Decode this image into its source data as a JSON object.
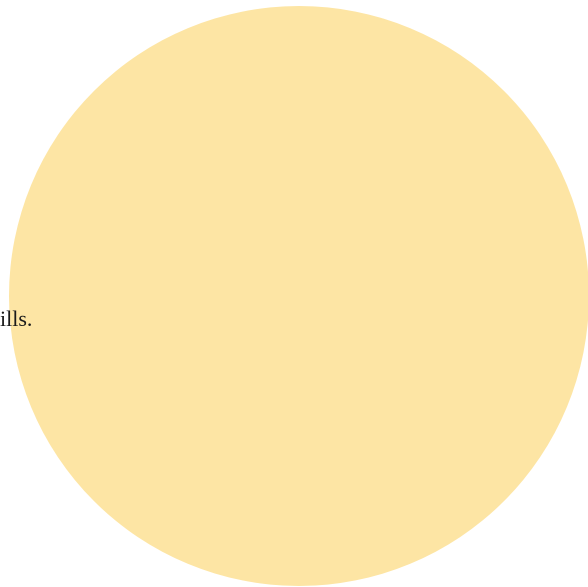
{
  "text": "ills."
}
